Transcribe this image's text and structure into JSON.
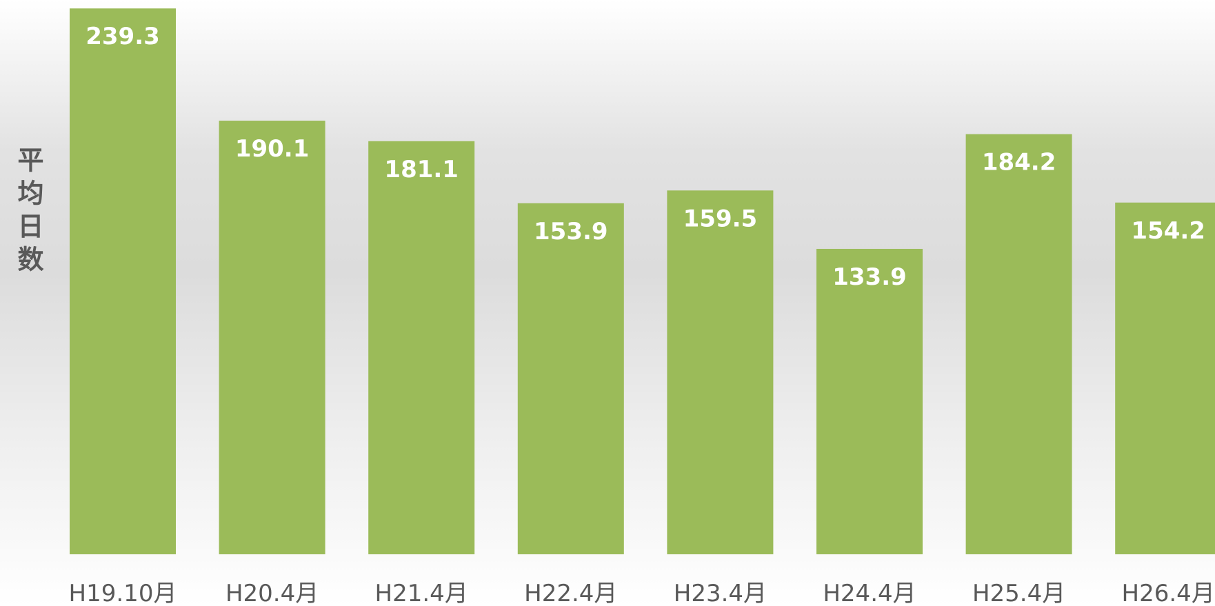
{
  "chart_data": {
    "type": "bar",
    "y_label": "平均日数",
    "categories": [
      "H19.10月",
      "H20.4月",
      "H21.4月",
      "H22.4月",
      "H23.4月",
      "H24.4月",
      "H25.4月",
      "H26.4月"
    ],
    "values": [
      239.3,
      190.1,
      181.1,
      153.9,
      159.5,
      133.9,
      184.2,
      154.2
    ],
    "color": "#9bbb59",
    "ylim": [
      0,
      243
    ]
  }
}
